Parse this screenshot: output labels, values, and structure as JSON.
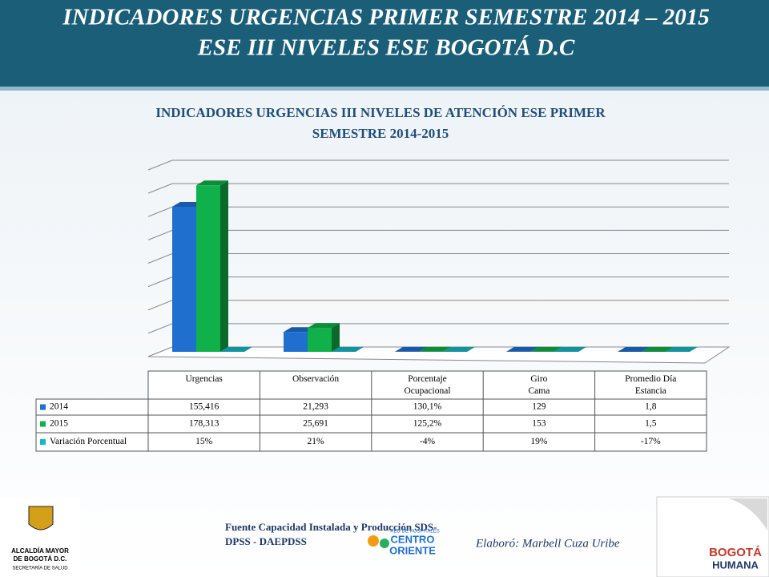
{
  "header": {
    "title_line1": "INDICADORES URGENCIAS PRIMER SEMESTRE 2014 – 2015",
    "title_line2": "ESE III NIVELES ESE BOGOTÁ D.C"
  },
  "chart_data": {
    "type": "bar3d",
    "title_line1": "INDICADORES URGENCIAS III NIVELES DE ATENCIÓN ESE PRIMER",
    "title_line2": "SEMESTRE 2014-2015",
    "categories": [
      "Urgencias",
      "Observación",
      "Porcentaje Ocupacional",
      "Giro Cama",
      "Promedio Día Estancia"
    ],
    "series": [
      {
        "name": "2014",
        "color": "#1f6fcf",
        "values": [
          155416,
          21293,
          130.1,
          129,
          1.8
        ],
        "value_labels": [
          "155,416",
          "21,293",
          "130,1%",
          "129",
          "1,8"
        ]
      },
      {
        "name": "2015",
        "color": "#10b04a",
        "values": [
          178313,
          25691,
          125.2,
          153,
          1.5
        ],
        "value_labels": [
          "178,313",
          "25,691",
          "125,2%",
          "153",
          "1,5"
        ]
      },
      {
        "name": "Variación Porcentual",
        "color": "#17b8c8",
        "values": [
          15,
          21,
          -4,
          19,
          -17
        ],
        "value_labels": [
          "15%",
          "21%",
          "-4%",
          "19%",
          "-17%"
        ]
      }
    ],
    "ylim": [
      0,
      200000
    ],
    "yticks": [
      0,
      25000,
      50000,
      75000,
      100000,
      125000,
      150000,
      175000,
      200000
    ],
    "grid": true
  },
  "footer": {
    "source_line1": "Fuente Capacidad Instalada y Producción SDS-",
    "source_line2": "DPSS - DAEPDSS",
    "author": "Elaboró: Marbell Cuza Uribe",
    "logo_left_line1": "ALCALDÍA MAYOR",
    "logo_left_line2": "DE BOGOTÁ D.C.",
    "logo_left_line3": "SECRETARÍA DE SALUD",
    "logo_center_line1": "RED DE HOSPITALES",
    "logo_center_line2": "CENTRO",
    "logo_center_line3": "ORIENTE",
    "logo_right_line1": "BOGOTÁ",
    "logo_right_line2": "HUMANA"
  }
}
